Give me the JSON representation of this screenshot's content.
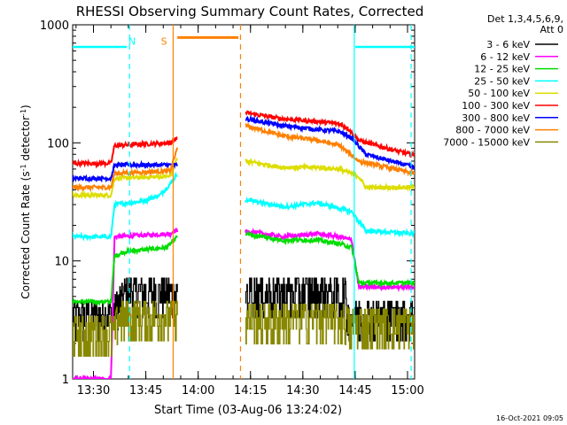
{
  "chart_data": {
    "type": "line",
    "title": "RHESSI Observing Summary Count Rates, Corrected",
    "ylabel_prefix": "Corrected Count Rate (s",
    "ylabel_sup1": "-1",
    "ylabel_mid": " detector",
    "ylabel_sup2": "-1",
    "ylabel_suffix": ")",
    "xlabel": "Start Time (03-Aug-06 13:24:02)",
    "yscale": "log",
    "ylim": [
      1,
      1000
    ],
    "xlim_minutes": [
      0,
      98
    ],
    "yticks": [
      {
        "value": 1,
        "label": "1"
      },
      {
        "value": 10,
        "label": "10"
      },
      {
        "value": 100,
        "label": "100"
      },
      {
        "value": 1000,
        "label": "1000"
      }
    ],
    "xticks": [
      {
        "minute": 5.97,
        "label": "13:30"
      },
      {
        "minute": 20.97,
        "label": "13:45"
      },
      {
        "minute": 35.97,
        "label": "14:00"
      },
      {
        "minute": 50.97,
        "label": "14:15"
      },
      {
        "minute": 65.97,
        "label": "14:30"
      },
      {
        "minute": 80.97,
        "label": "14:45"
      },
      {
        "minute": 95.97,
        "label": "15:00"
      }
    ],
    "legend_title": [
      "Det 1,3,4,5,6,9,",
      "Att 0"
    ],
    "series": [
      {
        "name": "3 - 6 keV",
        "color": "#000000",
        "style": "noisy",
        "x": [
          0,
          11,
          15,
          17,
          29,
          30
        ],
        "y": [
          3.5,
          3.5,
          5.5,
          5.5,
          5.5,
          5.5
        ]
      },
      {
        "name": "6 - 12 keV",
        "color": "#ff00ff",
        "style": "smooth",
        "x": [
          0,
          11,
          12,
          28,
          29,
          30
        ],
        "y": [
          1.0,
          1.0,
          16,
          17,
          18,
          18
        ]
      },
      {
        "name": "12 - 25 keV",
        "color": "#00dd00",
        "style": "smooth",
        "x": [
          0,
          11,
          12,
          15,
          27,
          30
        ],
        "y": [
          4.5,
          4.5,
          11,
          12,
          13,
          16
        ]
      },
      {
        "name": "25 - 50 keV",
        "color": "#00ffff",
        "style": "smooth",
        "x": [
          0,
          11,
          12,
          20,
          25,
          28,
          30
        ],
        "y": [
          16,
          16,
          30,
          32,
          36,
          45,
          55
        ]
      },
      {
        "name": "50 - 100 keV",
        "color": "#dddd00",
        "style": "smooth",
        "x": [
          0,
          11,
          12,
          28,
          30
        ],
        "y": [
          36,
          36,
          50,
          52,
          75
        ]
      },
      {
        "name": "100 - 300 keV",
        "color": "#ff0000",
        "style": "smooth",
        "x": [
          0,
          11,
          12,
          28,
          30
        ],
        "y": [
          67,
          67,
          95,
          100,
          110
        ]
      },
      {
        "name": "300 - 800 keV",
        "color": "#0000ff",
        "style": "smooth",
        "x": [
          0,
          11,
          12,
          28,
          30
        ],
        "y": [
          50,
          50,
          65,
          65,
          65
        ]
      },
      {
        "name": "800 - 7000 keV",
        "color": "#ff8000",
        "style": "smooth",
        "x": [
          0,
          11,
          12,
          28,
          30
        ],
        "y": [
          42,
          42,
          55,
          58,
          90
        ]
      },
      {
        "name": "7000 - 15000 keV",
        "color": "#888800",
        "style": "noisy",
        "x": [
          0,
          12,
          13,
          30
        ],
        "y": [
          2.6,
          2.6,
          3.5,
          3.5
        ]
      }
    ],
    "series_after": [
      {
        "color": "#ff0000",
        "x": [
          49.5,
          60,
          70,
          76.5,
          79,
          82,
          90,
          98
        ],
        "y": [
          180,
          160,
          152,
          145,
          132,
          105,
          90,
          78
        ]
      },
      {
        "color": "#0000ff",
        "x": [
          49.5,
          60,
          70,
          76.5,
          80,
          84,
          98
        ],
        "y": [
          160,
          140,
          130,
          125,
          110,
          80,
          62
        ]
      },
      {
        "color": "#ff8000",
        "x": [
          49.5,
          60,
          70,
          76.5,
          82,
          98
        ],
        "y": [
          140,
          115,
          105,
          95,
          70,
          55
        ]
      },
      {
        "color": "#dddd00",
        "x": [
          49.5,
          60,
          70,
          76.5,
          82,
          84,
          98
        ],
        "y": [
          70,
          62,
          62,
          60,
          52,
          42,
          42
        ]
      },
      {
        "color": "#00ffff",
        "x": [
          49.5,
          60,
          62,
          70,
          76.5,
          80,
          84,
          98
        ],
        "y": [
          33,
          29,
          29,
          31,
          28,
          26,
          18,
          17
        ]
      },
      {
        "color": "#ff00ff",
        "x": [
          49.5,
          60,
          70,
          76.5,
          80,
          82,
          98
        ],
        "y": [
          18,
          16,
          17,
          16,
          15,
          6,
          6
        ]
      },
      {
        "color": "#00dd00",
        "x": [
          49.5,
          60,
          70,
          76.5,
          80,
          82,
          98
        ],
        "y": [
          17,
          15,
          15,
          14,
          13,
          6.5,
          6.5
        ]
      },
      {
        "color": "#000000",
        "style": "noisy",
        "x": [
          49.5,
          78,
          79,
          98
        ],
        "y": [
          5.5,
          5.5,
          3.5,
          3.5
        ]
      },
      {
        "color": "#888800",
        "style": "noisy",
        "x": [
          49.5,
          78,
          79,
          98
        ],
        "y": [
          3.3,
          3.3,
          3.0,
          3.0
        ]
      }
    ],
    "annotations": [
      {
        "label": "N",
        "color": "#00ffff",
        "minute": 16.0
      },
      {
        "label": "S",
        "color": "#ff8000",
        "minute": 25.3
      }
    ],
    "cyan_bars": [
      {
        "x0": 0,
        "x1": 15.5,
        "y": 650
      },
      {
        "x0": 81,
        "x1": 98,
        "y": 650
      }
    ],
    "orange_bar": {
      "x0": 30,
      "x1": 47.5,
      "y": 780
    },
    "vlines": [
      {
        "minute": 16.3,
        "color": "#00ffff",
        "dashed": true
      },
      {
        "minute": 28.8,
        "color": "#ff8000",
        "dashed": false
      },
      {
        "minute": 48.1,
        "color": "#ff8000",
        "dashed": true
      },
      {
        "minute": 80.7,
        "color": "#00ffff",
        "dashed": false
      },
      {
        "minute": 97.0,
        "color": "#00ffff",
        "dashed": true
      }
    ],
    "timestamp": "16-Oct-2021 09:05"
  }
}
